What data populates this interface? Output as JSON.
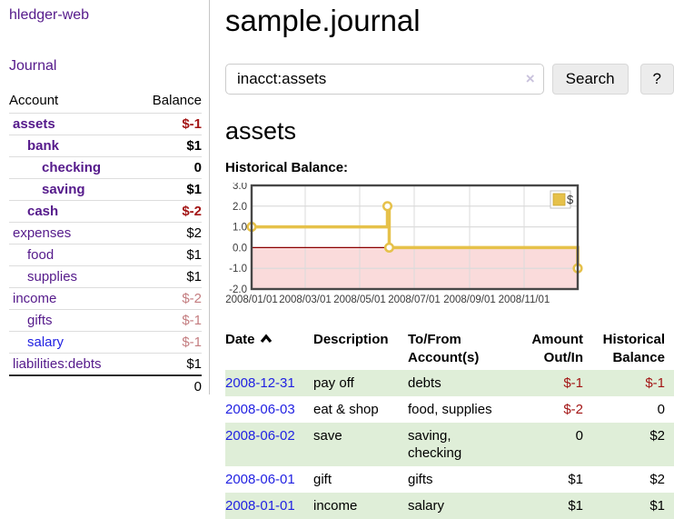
{
  "sidebar": {
    "brand": "hledger-web",
    "nav": [
      {
        "label": "Journal"
      }
    ],
    "accounts_table": {
      "col_account": "Account",
      "col_balance": "Balance",
      "rows": [
        {
          "name": "assets",
          "depth": 1,
          "balance": "$-1",
          "bold": true,
          "balance_tone": "strong"
        },
        {
          "name": "bank",
          "depth": 2,
          "balance": "$1",
          "bold": true,
          "balance_tone": "normal"
        },
        {
          "name": "checking",
          "depth": 3,
          "balance": "0",
          "bold": true,
          "balance_tone": "normal"
        },
        {
          "name": "saving",
          "depth": 3,
          "balance": "$1",
          "bold": true,
          "balance_tone": "normal"
        },
        {
          "name": "cash",
          "depth": 2,
          "balance": "$-2",
          "bold": true,
          "balance_tone": "strong"
        },
        {
          "name": "expenses",
          "depth": 1,
          "balance": "$2",
          "bold": false,
          "balance_tone": "normal"
        },
        {
          "name": "food",
          "depth": 2,
          "balance": "$1",
          "bold": false,
          "balance_tone": "normal"
        },
        {
          "name": "supplies",
          "depth": 2,
          "balance": "$1",
          "bold": false,
          "balance_tone": "normal"
        },
        {
          "name": "income",
          "depth": 1,
          "balance": "$-2",
          "bold": false,
          "balance_tone": "faded"
        },
        {
          "name": "gifts",
          "depth": 2,
          "balance": "$-1",
          "bold": false,
          "balance_tone": "faded"
        },
        {
          "name": "salary",
          "depth": 2,
          "balance": "$-1",
          "bold": false,
          "balance_tone": "faded",
          "link_color": "blue"
        },
        {
          "name": "liabilities:debts",
          "depth": 1,
          "balance": "$1",
          "bold": false,
          "balance_tone": "normal"
        }
      ],
      "total": "0"
    }
  },
  "header": {
    "title": "sample.journal"
  },
  "search": {
    "value": "inacct:assets",
    "clear_icon": "×",
    "button_label": "Search",
    "help_label": "?"
  },
  "account_page": {
    "heading": "assets",
    "chart_title": "Historical Balance:"
  },
  "chart_data": {
    "type": "line",
    "title": "Historical Balance:",
    "series": [
      {
        "name": "$",
        "color": "#E6C14A",
        "step": true,
        "points": [
          [
            "2008-01-01",
            1
          ],
          [
            "2008-06-01",
            2
          ],
          [
            "2008-06-03",
            0
          ],
          [
            "2008-12-31",
            -1
          ]
        ]
      }
    ],
    "x_range": [
      "2008-01-01",
      "2008-12-31"
    ],
    "y_range": [
      -2,
      3
    ],
    "x_ticks": [
      "2008/01/01",
      "2008/03/01",
      "2008/05/01",
      "2008/07/01",
      "2008/09/01",
      "2008/11/01"
    ],
    "y_ticks": [
      "3.0",
      "2.0",
      "1.0",
      "0.0",
      "-1.0",
      "-2.0"
    ],
    "grid": true,
    "legend_position": "top-right",
    "legend_label": "$",
    "negative_region_color": "#FADBDB",
    "zero_line_color": "#8B0000",
    "grid_color": "#DBDBDB",
    "border_color": "#474747"
  },
  "register_table": {
    "columns": {
      "date": "Date",
      "description": "Description",
      "accounts": "To/From Account(s)",
      "amount": "Amount Out/In",
      "balance": "Historical Balance"
    },
    "sort_icon": "chevron-up",
    "rows": [
      {
        "date": "2008-12-31",
        "description": "pay off",
        "accounts": "debts",
        "amount": "$-1",
        "amount_tone": "strong",
        "balance": "$-1",
        "balance_tone": "strong"
      },
      {
        "date": "2008-06-03",
        "description": "eat & shop",
        "accounts": "food, supplies",
        "amount": "$-2",
        "amount_tone": "strong",
        "balance": "0",
        "balance_tone": "normal"
      },
      {
        "date": "2008-06-02",
        "description": "save",
        "accounts": "saving,\nchecking",
        "amount": "0",
        "amount_tone": "normal",
        "balance": "$2",
        "balance_tone": "normal"
      },
      {
        "date": "2008-06-01",
        "description": "gift",
        "accounts": "gifts",
        "amount": "$1",
        "amount_tone": "normal",
        "balance": "$2",
        "balance_tone": "normal"
      },
      {
        "date": "2008-01-01",
        "description": "income",
        "accounts": "salary",
        "amount": "$1",
        "amount_tone": "normal",
        "balance": "$1",
        "balance_tone": "normal"
      }
    ]
  },
  "colors": {
    "link_purple": "#551A8B",
    "link_blue": "#2222E2",
    "negative_strong": "#A31515",
    "negative_faded": "#C47D80",
    "row_stripe_green": "#DFEED8",
    "chart_line_gold": "#E6C14A",
    "chart_negative_pink": "#FADBDB",
    "chart_zero_line": "#8B0000"
  }
}
